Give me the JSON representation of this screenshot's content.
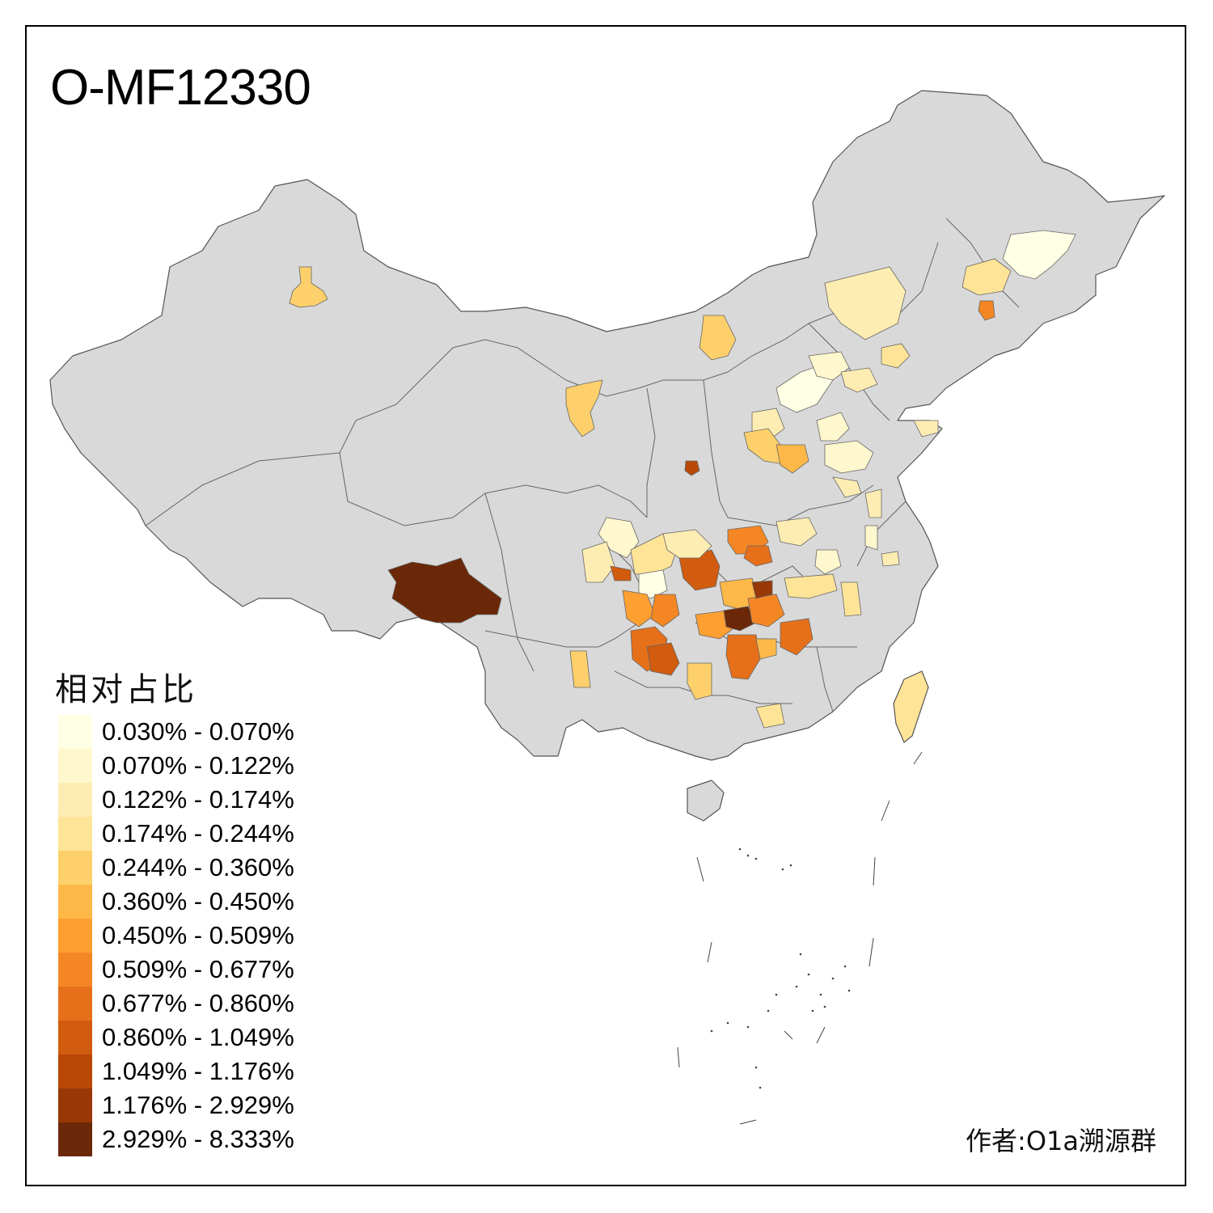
{
  "title": "O-MF12330",
  "legend": {
    "title": "相对占比",
    "items": [
      {
        "label": "0.030% - 0.070%",
        "color": "#FFFFE5"
      },
      {
        "label": "0.070% - 0.122%",
        "color": "#FFF7CD"
      },
      {
        "label": "0.122% - 0.174%",
        "color": "#FEEDB3"
      },
      {
        "label": "0.174% - 0.244%",
        "color": "#FEE497"
      },
      {
        "label": "0.244% - 0.360%",
        "color": "#FED06B"
      },
      {
        "label": "0.360% - 0.450%",
        "color": "#FEB848"
      },
      {
        "label": "0.450% - 0.509%",
        "color": "#FD9F31"
      },
      {
        "label": "0.509% - 0.677%",
        "color": "#F48724"
      },
      {
        "label": "0.677% - 0.860%",
        "color": "#E6701A"
      },
      {
        "label": "0.860% - 1.049%",
        "color": "#D15B0E"
      },
      {
        "label": "1.049% - 1.176%",
        "color": "#B94807"
      },
      {
        "label": "1.176% - 2.929%",
        "color": "#983807"
      },
      {
        "label": "2.929% - 8.333%",
        "color": "#6A2808"
      }
    ]
  },
  "credit": "作者:O1a溯源群",
  "map": {
    "base_color": "#D9D9D9",
    "border_color": "#555555"
  }
}
